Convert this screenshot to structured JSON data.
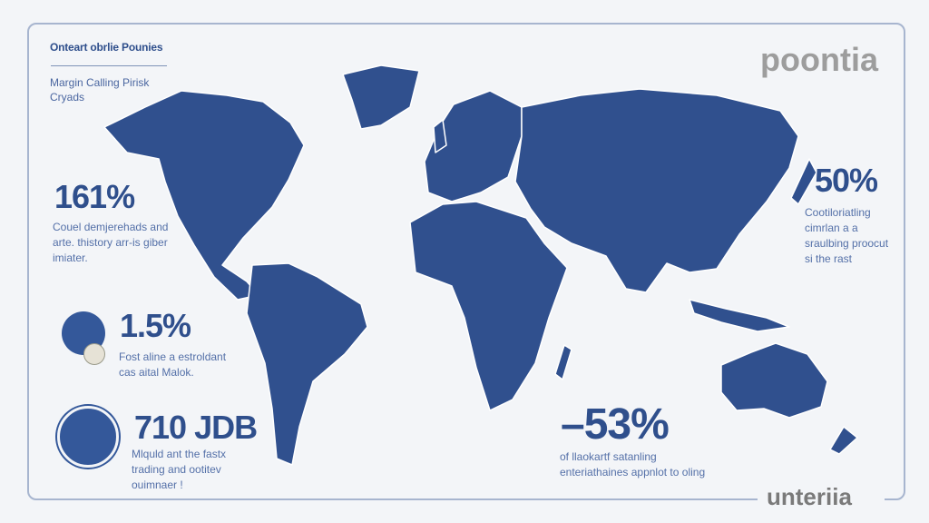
{
  "header": {
    "title": "Onteart obrlie Pounies",
    "subtitle": "Margin Calling Pirisk Cryads"
  },
  "brand_top": "poontia",
  "brand_bottom": "unteriia",
  "stats": [
    {
      "value": "161%",
      "text": "Couel demjerehads and arte. thistory arr-is giber imiater."
    },
    {
      "value": "1.5%",
      "text": "Fost aline a estroldant cas aital Malok.",
      "icon": "coin-hand-icon"
    },
    {
      "value": "710 JDB",
      "text": "Mlquld ant the fastx trading and ootitev ouimnaer !",
      "icon": "hand-gesture-icon"
    },
    {
      "value": "50%",
      "text": "Cootiloriatling cimrlan a a sraulbing proocut si the rast"
    },
    {
      "value": "–53%",
      "text": "of llaokartf satanling enteriathaines appnlot to oling"
    }
  ],
  "colors": {
    "map": "#2f4f8c",
    "text": "#2f4f8c",
    "border": "#a7b5cf",
    "background": "#f3f5f8"
  }
}
